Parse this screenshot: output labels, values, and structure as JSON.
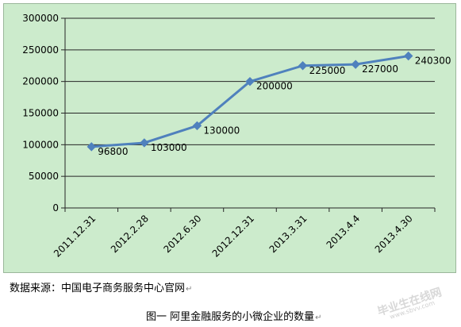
{
  "chart_data": {
    "type": "line",
    "categories": [
      "2011.12.31",
      "2012.2.28",
      "2012.6.30",
      "2012.12.31",
      "2013.3.31",
      "2013.4.4",
      "2013.4.30"
    ],
    "values": [
      96800,
      103000,
      130000,
      200000,
      225000,
      227000,
      240300
    ],
    "data_labels": [
      "96800",
      "103000",
      "130000",
      "200000",
      "225000",
      "227000",
      "240300"
    ],
    "ylim": [
      0,
      300000
    ],
    "y_ticks": [
      0,
      50000,
      100000,
      150000,
      200000,
      250000,
      300000
    ],
    "y_tick_labels": [
      "0",
      "50000",
      "100000",
      "150000",
      "200000",
      "250000",
      "300000"
    ],
    "grid": true,
    "legend": "none",
    "colors": {
      "line": "#4f81bd",
      "marker": "#4f81bd",
      "plot_bg": "#ccebcc",
      "grid": "#262626"
    }
  },
  "footer": {
    "source": "数据来源：中国电子商务服务中心官网",
    "caption": "图一  阿里金融服务的小微企业的数量"
  },
  "watermark": {
    "main": "毕业生在线网",
    "sub": "www.sbvv.com"
  }
}
